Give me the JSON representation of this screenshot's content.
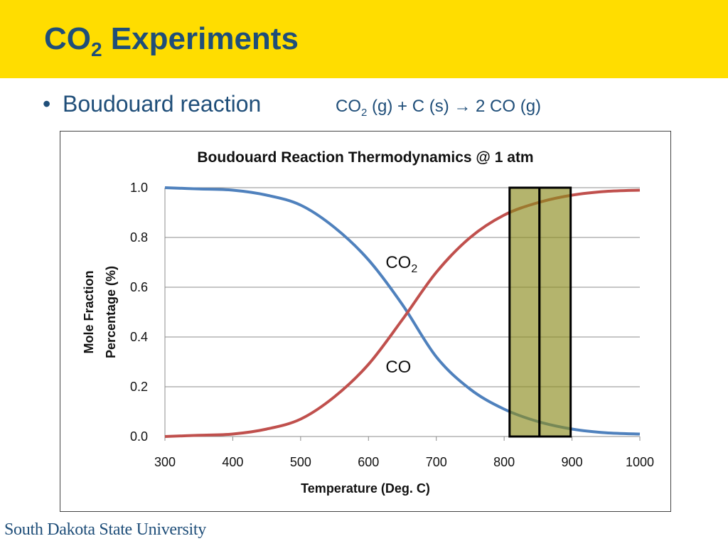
{
  "slide": {
    "title_main": "CO",
    "title_sub": "2",
    "title_rest": " Experiments",
    "bullet_marker": "•",
    "bullet_text": "Boudouard reaction",
    "equation": {
      "part1": "CO",
      "sub": "2",
      "part2": " (g) + C (s) ",
      "arrow": "→",
      "part3": " 2 CO (g)"
    },
    "footer": "South Dakota State University"
  },
  "colors": {
    "header": "#ffdd00",
    "title": "#1f4e79",
    "co2": "#4f81bd",
    "co": "#c0504d",
    "band": "#8c8c1e"
  },
  "chart_data": {
    "type": "line",
    "title": "Boudouard Reaction Thermodynamics @ 1 atm",
    "xlabel": "Temperature (Deg. C)",
    "ylabel_line1": "Mole Fraction",
    "ylabel_line2": "Percentage (%)",
    "xlim": [
      300,
      1000
    ],
    "ylim": [
      0,
      1
    ],
    "x_ticks": [
      "300",
      "400",
      "500",
      "600",
      "700",
      "800",
      "900",
      "1000"
    ],
    "y_ticks": [
      "0.0",
      "0.2",
      "0.4",
      "0.6",
      "0.8",
      "1.0"
    ],
    "grid": "horizontal",
    "x": [
      300,
      350,
      400,
      450,
      500,
      550,
      600,
      650,
      700,
      750,
      800,
      850,
      900,
      950,
      1000
    ],
    "series": [
      {
        "name": "CO2",
        "label_main": "CO",
        "label_sub": "2",
        "label_at": [
          665,
          0.7
        ],
        "values": [
          1.0,
          0.995,
          0.99,
          0.97,
          0.93,
          0.84,
          0.71,
          0.53,
          0.32,
          0.19,
          0.11,
          0.06,
          0.03,
          0.015,
          0.01
        ]
      },
      {
        "name": "CO",
        "label_main": "CO",
        "label_sub": "",
        "label_at": [
          665,
          0.28
        ],
        "values": [
          0.0,
          0.005,
          0.01,
          0.03,
          0.07,
          0.16,
          0.29,
          0.47,
          0.66,
          0.8,
          0.89,
          0.94,
          0.97,
          0.985,
          0.99
        ]
      }
    ],
    "highlight_bands": [
      [
        808,
        852
      ],
      [
        852,
        898
      ]
    ]
  }
}
